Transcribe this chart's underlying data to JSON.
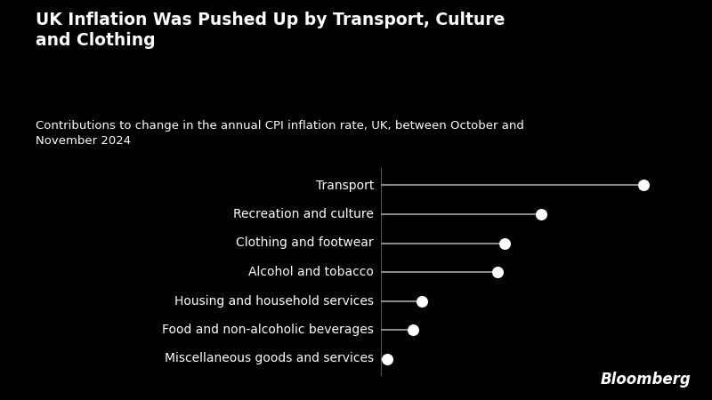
{
  "title": "UK Inflation Was Pushed Up by Transport, Culture\nand Clothing",
  "subtitle": "Contributions to change in the annual CPI inflation rate, UK, between October and\nNovember 2024",
  "categories": [
    "Transport",
    "Recreation and culture",
    "Clothing and footwear",
    "Alcohol and tobacco",
    "Housing and household services",
    "Food and non-alcoholic beverages",
    "Miscellaneous goods and services"
  ],
  "values": [
    0.18,
    0.11,
    0.085,
    0.08,
    0.028,
    0.022,
    0.004
  ],
  "background_color": "#000000",
  "text_color": "#ffffff",
  "line_color": "#888888",
  "dot_color": "#ffffff",
  "title_fontsize": 13.5,
  "subtitle_fontsize": 9.5,
  "label_fontsize": 10,
  "bloomberg_fontsize": 12,
  "dot_size": 70,
  "bloomberg_text": "Bloomberg"
}
